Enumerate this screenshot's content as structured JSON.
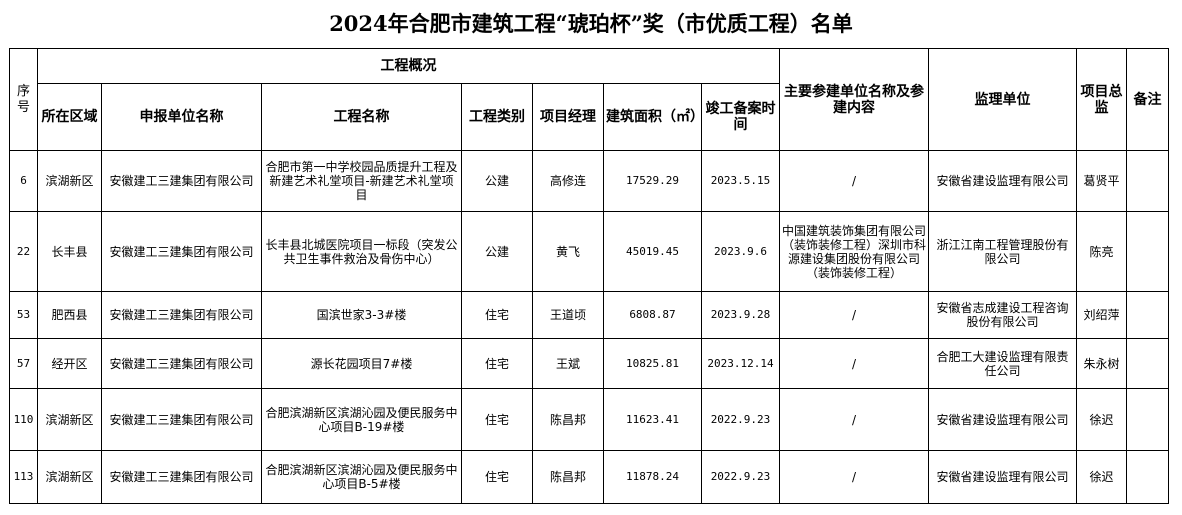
{
  "title": "2024年合肥市建筑工程“琥珀杯”奖（市优质工程）名单",
  "headers": {
    "seq": "序号",
    "overview": "工程概况",
    "region": "所在区域",
    "applicant": "申报单位名称",
    "project": "工程名称",
    "category": "工程类别",
    "manager": "项目经理",
    "area": "建筑面积（㎡）",
    "date": "竣工备案时间",
    "participants": "主要参建单位名称及参建内容",
    "supervisor_unit": "监理单位",
    "chief": "项目总监",
    "remarks": "备注"
  },
  "rows": [
    {
      "seq": "6",
      "region": "滨湖新区",
      "applicant": "安徽建工三建集团有限公司",
      "project": "合肥市第一中学校园品质提升工程及新建艺术礼堂项目-新建艺术礼堂项目",
      "category": "公建",
      "manager": "高修连",
      "area": "17529.29",
      "date": "2023.5.15",
      "participants": "/",
      "supervisor_unit": "安徽省建设监理有限公司",
      "chief": "葛贤平",
      "remarks": ""
    },
    {
      "seq": "22",
      "region": "长丰县",
      "applicant": "安徽建工三建集团有限公司",
      "project": "长丰县北城医院项目一标段（突发公共卫生事件救治及骨伤中心）",
      "category": "公建",
      "manager": "黄飞",
      "area": "45019.45",
      "date": "2023.9.6",
      "participants": "中国建筑装饰集团有限公司（装饰装修工程）深圳市科源建设集团股份有限公司（装饰装修工程）",
      "supervisor_unit": "浙江江南工程管理股份有限公司",
      "chief": "陈亮",
      "remarks": ""
    },
    {
      "seq": "53",
      "region": "肥西县",
      "applicant": "安徽建工三建集团有限公司",
      "project": "国滨世家3-3#楼",
      "category": "住宅",
      "manager": "王道顷",
      "area": "6808.87",
      "date": "2023.9.28",
      "participants": "/",
      "supervisor_unit": "安徽省志成建设工程咨询股份有限公司",
      "chief": "刘绍萍",
      "remarks": ""
    },
    {
      "seq": "57",
      "region": "经开区",
      "applicant": "安徽建工三建集团有限公司",
      "project": "源长花园项目7#楼",
      "category": "住宅",
      "manager": "王斌",
      "area": "10825.81",
      "date": "2023.12.14",
      "participants": "/",
      "supervisor_unit": "合肥工大建设监理有限责任公司",
      "chief": "朱永树",
      "remarks": ""
    },
    {
      "seq": "110",
      "region": "滨湖新区",
      "applicant": "安徽建工三建集团有限公司",
      "project": "合肥滨湖新区滨湖沁园及便民服务中心项目B-19#楼",
      "category": "住宅",
      "manager": "陈昌邦",
      "area": "11623.41",
      "date": "2022.9.23",
      "participants": "/",
      "supervisor_unit": "安徽省建设监理有限公司",
      "chief": "徐迟",
      "remarks": ""
    },
    {
      "seq": "113",
      "region": "滨湖新区",
      "applicant": "安徽建工三建集团有限公司",
      "project": "合肥滨湖新区滨湖沁园及便民服务中心项目B-5#楼",
      "category": "住宅",
      "manager": "陈昌邦",
      "area": "11878.24",
      "date": "2022.9.23",
      "participants": "/",
      "supervisor_unit": "安徽省建设监理有限公司",
      "chief": "徐迟",
      "remarks": ""
    }
  ]
}
